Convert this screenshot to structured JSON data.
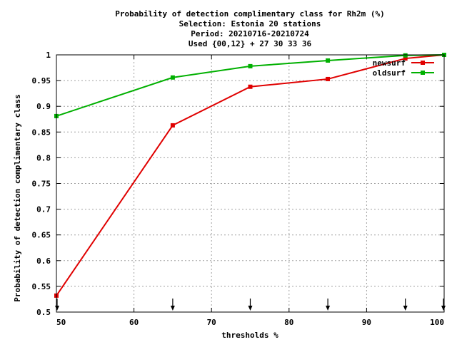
{
  "chart_data": {
    "type": "line",
    "title_lines": [
      "Probability of detection complimentary class  for Rh2m (%)",
      "Selection: Estonia     20 stations",
      "Period: 20210716-20210724",
      "Used {00,12} + 27 30 33 36"
    ],
    "xlabel": "thresholds %",
    "ylabel": "Probability of detection complimentary class",
    "xlim": [
      50,
      100
    ],
    "ylim": [
      0.5,
      1
    ],
    "x_ticks": [
      50,
      60,
      70,
      80,
      90,
      100
    ],
    "x_tick_labels": [
      "50",
      "60",
      "70",
      "80",
      "90",
      "100"
    ],
    "y_ticks": [
      0.5,
      0.55,
      0.6,
      0.65,
      0.7,
      0.75,
      0.8,
      0.85,
      0.9,
      0.95,
      1
    ],
    "y_tick_labels": [
      "0.5",
      "0.55",
      "0.6",
      "0.65",
      "0.7",
      "0.75",
      "0.8",
      "0.85",
      "0.9",
      "0.95",
      "1"
    ],
    "grid": true,
    "legend_position": "top-right",
    "arrow_markers_x": [
      50,
      65,
      75,
      85,
      95,
      100
    ],
    "series": [
      {
        "name": "newsurf",
        "color": "#e00000",
        "x": [
          50,
          65,
          75,
          85,
          95,
          100
        ],
        "y": [
          0.532,
          0.863,
          0.938,
          0.953,
          0.993,
          1.0
        ]
      },
      {
        "name": "oldsurf",
        "color": "#00b000",
        "x": [
          50,
          65,
          75,
          85,
          95,
          100
        ],
        "y": [
          0.881,
          0.956,
          0.978,
          0.989,
          0.999,
          1.0
        ]
      }
    ]
  }
}
